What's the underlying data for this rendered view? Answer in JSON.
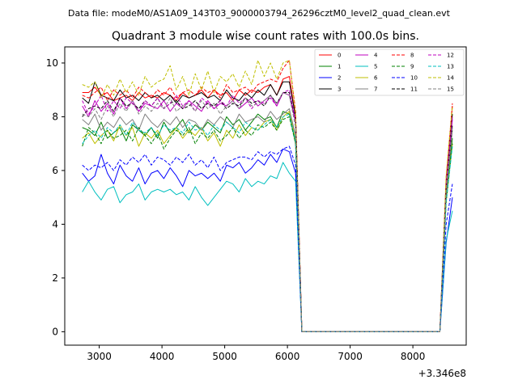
{
  "header": {
    "data_file_label": "Data file: modeM0/AS1A09_143T03_9000003794_26296cztM0_level2_quad_clean.evt"
  },
  "chart_data": {
    "type": "line",
    "title": "Quadrant 3 module wise count rates with 100.0s bins.",
    "xlabel": "",
    "ylabel": "",
    "x_offset_label": "+3.346e8",
    "x_offset": 334600000,
    "xlim": [
      2450,
      8850
    ],
    "ylim": [
      -0.5,
      10.6
    ],
    "xticks": [
      3000,
      4000,
      5000,
      6000,
      7000,
      8000
    ],
    "yticks": [
      0,
      2,
      4,
      6,
      8,
      10
    ],
    "grid": false,
    "legend_placement": "top-right",
    "legend_columns": 4,
    "x": [
      2730,
      2830,
      2930,
      3030,
      3130,
      3230,
      3330,
      3430,
      3530,
      3630,
      3730,
      3830,
      3930,
      4030,
      4130,
      4230,
      4330,
      4430,
      4530,
      4630,
      4730,
      4830,
      4930,
      5030,
      5130,
      5230,
      5330,
      5430,
      5530,
      5630,
      5730,
      5830,
      5930,
      6030,
      6130,
      6230,
      6330,
      6430,
      6530,
      6630,
      6730,
      6830,
      6930,
      7030,
      7130,
      7230,
      7330,
      7430,
      7530,
      7630,
      7730,
      7830,
      7930,
      8030,
      8130,
      8230,
      8330,
      8430,
      8530,
      8630
    ],
    "series": [
      {
        "name": "0",
        "color": "#ff0000",
        "style": "solid",
        "values": [
          8.9,
          8.9,
          9.1,
          8.8,
          8.9,
          8.6,
          8.7,
          8.8,
          8.6,
          8.9,
          8.7,
          8.8,
          8.7,
          8.9,
          8.8,
          8.6,
          8.9,
          8.7,
          8.8,
          9.0,
          8.7,
          9.0,
          8.8,
          8.9,
          8.6,
          9.0,
          8.8,
          9.0,
          8.9,
          9.1,
          9.2,
          8.8,
          9.4,
          9.5,
          8.0,
          0,
          0,
          0,
          0,
          0,
          0,
          0,
          0,
          0,
          0,
          0,
          0,
          0,
          0,
          0,
          0,
          0,
          0,
          0,
          0,
          0,
          0,
          0,
          5.6,
          8.4
        ]
      },
      {
        "name": "1",
        "color": "#008000",
        "style": "solid",
        "values": [
          7.6,
          7.5,
          7.3,
          7.8,
          7.2,
          7.4,
          7.6,
          7.1,
          7.7,
          7.5,
          7.3,
          7.6,
          7.2,
          7.8,
          7.4,
          7.6,
          7.9,
          7.4,
          7.7,
          7.5,
          7.8,
          7.6,
          7.4,
          8.0,
          7.7,
          7.9,
          7.5,
          7.8,
          8.1,
          7.9,
          8.0,
          7.6,
          8.2,
          8.1,
          7.0,
          0,
          0,
          0,
          0,
          0,
          0,
          0,
          0,
          0,
          0,
          0,
          0,
          0,
          0,
          0,
          0,
          0,
          0,
          0,
          0,
          0,
          0,
          0,
          5.0,
          7.2
        ]
      },
      {
        "name": "2",
        "color": "#0000ff",
        "style": "solid",
        "values": [
          5.9,
          5.6,
          5.8,
          6.6,
          5.9,
          5.5,
          6.2,
          5.8,
          5.6,
          6.1,
          5.5,
          5.9,
          6.0,
          5.7,
          6.1,
          5.8,
          5.4,
          6.0,
          5.8,
          5.9,
          5.7,
          5.9,
          5.6,
          6.2,
          6.1,
          6.3,
          5.9,
          6.1,
          6.4,
          6.2,
          6.6,
          6.3,
          6.8,
          6.7,
          5.9,
          0,
          0,
          0,
          0,
          0,
          0,
          0,
          0,
          0,
          0,
          0,
          0,
          0,
          0,
          0,
          0,
          0,
          0,
          0,
          0,
          0,
          0,
          0,
          3.3,
          5.0
        ]
      },
      {
        "name": "3",
        "color": "#000000",
        "style": "solid",
        "values": [
          8.7,
          8.5,
          9.3,
          8.8,
          8.7,
          8.6,
          9.0,
          8.7,
          8.8,
          8.6,
          8.9,
          8.7,
          8.8,
          8.6,
          8.8,
          8.5,
          8.8,
          8.7,
          8.8,
          8.9,
          8.7,
          8.8,
          8.6,
          9.0,
          8.7,
          8.6,
          8.9,
          8.7,
          9.0,
          8.8,
          9.2,
          8.8,
          9.3,
          9.3,
          8.0,
          0,
          0,
          0,
          0,
          0,
          0,
          0,
          0,
          0,
          0,
          0,
          0,
          0,
          0,
          0,
          0,
          0,
          0,
          0,
          0,
          0,
          0,
          0,
          5.5,
          8.1
        ]
      },
      {
        "name": "4",
        "color": "#bf00bf",
        "style": "solid",
        "values": [
          8.4,
          8.0,
          8.6,
          8.2,
          8.5,
          8.1,
          8.7,
          8.3,
          8.6,
          8.2,
          8.5,
          8.4,
          8.3,
          8.6,
          8.2,
          8.5,
          8.3,
          8.6,
          8.4,
          8.2,
          8.6,
          8.3,
          8.5,
          8.4,
          8.6,
          8.3,
          8.5,
          8.7,
          8.4,
          8.6,
          8.8,
          8.4,
          8.9,
          8.8,
          7.8,
          0,
          0,
          0,
          0,
          0,
          0,
          0,
          0,
          0,
          0,
          0,
          0,
          0,
          0,
          0,
          0,
          0,
          0,
          0,
          0,
          0,
          0,
          0,
          5.4,
          7.9
        ]
      },
      {
        "name": "5",
        "color": "#00bfbf",
        "style": "solid",
        "values": [
          5.2,
          5.6,
          5.2,
          4.9,
          5.3,
          5.4,
          4.8,
          5.1,
          5.2,
          5.5,
          4.9,
          5.2,
          5.3,
          5.2,
          5.3,
          5.1,
          5.2,
          4.9,
          5.4,
          5.0,
          4.7,
          5.0,
          5.3,
          5.6,
          5.5,
          5.2,
          5.7,
          5.4,
          5.6,
          5.5,
          5.8,
          5.7,
          6.3,
          5.9,
          5.6,
          0,
          0,
          0,
          0,
          0,
          0,
          0,
          0,
          0,
          0,
          0,
          0,
          0,
          0,
          0,
          0,
          0,
          0,
          0,
          0,
          0,
          0,
          0,
          3.4,
          4.5
        ]
      },
      {
        "name": "6",
        "color": "#bfbf00",
        "style": "solid",
        "values": [
          7.2,
          7.4,
          7.0,
          7.3,
          7.5,
          7.1,
          7.7,
          7.3,
          7.6,
          6.9,
          7.4,
          7.2,
          7.5,
          7.0,
          7.3,
          7.6,
          7.2,
          7.5,
          7.3,
          7.6,
          7.1,
          7.4,
          6.9,
          7.5,
          7.2,
          7.7,
          7.3,
          7.6,
          7.5,
          7.8,
          7.9,
          7.5,
          8.0,
          8.2,
          7.2,
          0,
          0,
          0,
          0,
          0,
          0,
          0,
          0,
          0,
          0,
          0,
          0,
          0,
          0,
          0,
          0,
          0,
          0,
          0,
          0,
          0,
          0,
          0,
          4.9,
          7.0
        ]
      },
      {
        "name": "7",
        "color": "#808080",
        "style": "solid",
        "values": [
          7.9,
          7.7,
          8.1,
          7.5,
          7.8,
          7.6,
          8.0,
          7.7,
          7.9,
          7.5,
          8.1,
          7.8,
          7.6,
          7.9,
          7.7,
          8.0,
          7.6,
          7.9,
          7.8,
          7.5,
          7.9,
          7.7,
          8.0,
          7.8,
          7.6,
          8.1,
          7.8,
          7.9,
          8.0,
          7.8,
          8.2,
          7.9,
          8.1,
          8.3,
          7.3,
          0,
          0,
          0,
          0,
          0,
          0,
          0,
          0,
          0,
          0,
          0,
          0,
          0,
          0,
          0,
          0,
          0,
          0,
          0,
          0,
          0,
          0,
          0,
          5.1,
          7.5
        ]
      },
      {
        "name": "8",
        "color": "#ff0000",
        "style": "dashed",
        "values": [
          8.8,
          8.7,
          8.9,
          9.1,
          8.6,
          9.0,
          8.8,
          9.0,
          8.7,
          9.1,
          8.9,
          8.7,
          9.0,
          8.8,
          9.1,
          8.7,
          8.9,
          9.0,
          8.8,
          9.1,
          8.9,
          9.0,
          8.7,
          9.2,
          8.9,
          9.0,
          9.1,
          8.9,
          9.2,
          9.3,
          9.4,
          9.3,
          9.8,
          10.1,
          8.2,
          0,
          0,
          0,
          0,
          0,
          0,
          0,
          0,
          0,
          0,
          0,
          0,
          0,
          0,
          0,
          0,
          0,
          0,
          0,
          0,
          0,
          0,
          0,
          5.7,
          8.5
        ]
      },
      {
        "name": "9",
        "color": "#008000",
        "style": "dashed",
        "values": [
          6.9,
          7.6,
          7.4,
          7.0,
          7.5,
          7.2,
          7.3,
          7.5,
          7.1,
          7.6,
          7.3,
          7.0,
          7.4,
          6.8,
          7.2,
          7.5,
          7.3,
          7.6,
          7.0,
          7.4,
          7.2,
          7.5,
          7.1,
          7.3,
          7.6,
          7.2,
          7.5,
          7.3,
          7.7,
          7.6,
          7.8,
          7.5,
          7.9,
          8.0,
          7.0,
          0,
          0,
          0,
          0,
          0,
          0,
          0,
          0,
          0,
          0,
          0,
          0,
          0,
          0,
          0,
          0,
          0,
          0,
          0,
          0,
          0,
          0,
          0,
          4.8,
          7.0
        ]
      },
      {
        "name": "10",
        "color": "#0000ff",
        "style": "dashed",
        "values": [
          6.2,
          6.0,
          6.2,
          6.1,
          6.3,
          6.0,
          6.4,
          6.2,
          6.5,
          6.3,
          6.6,
          6.2,
          6.5,
          6.4,
          6.2,
          6.5,
          6.3,
          6.6,
          6.2,
          6.4,
          6.1,
          6.5,
          6.0,
          6.3,
          6.4,
          6.5,
          6.5,
          6.4,
          6.7,
          6.5,
          6.7,
          6.6,
          6.8,
          6.9,
          6.2,
          0,
          0,
          0,
          0,
          0,
          0,
          0,
          0,
          0,
          0,
          0,
          0,
          0,
          0,
          0,
          0,
          0,
          0,
          0,
          0,
          0,
          0,
          0,
          4.0,
          5.5
        ]
      },
      {
        "name": "11",
        "color": "#000000",
        "style": "dashed",
        "values": [
          8.0,
          8.3,
          8.4,
          8.3,
          8.6,
          8.2,
          8.7,
          8.4,
          8.5,
          8.3,
          8.6,
          8.4,
          8.7,
          8.3,
          8.5,
          8.6,
          8.3,
          8.4,
          8.6,
          8.3,
          8.5,
          8.4,
          8.6,
          8.3,
          8.5,
          8.4,
          8.7,
          8.5,
          8.6,
          8.4,
          8.8,
          8.5,
          8.9,
          8.9,
          7.9,
          0,
          0,
          0,
          0,
          0,
          0,
          0,
          0,
          0,
          0,
          0,
          0,
          0,
          0,
          0,
          0,
          0,
          0,
          0,
          0,
          0,
          0,
          0,
          5.3,
          7.7
        ]
      },
      {
        "name": "12",
        "color": "#bf00bf",
        "style": "dashed",
        "values": [
          8.6,
          8.1,
          8.4,
          8.8,
          8.2,
          8.6,
          8.3,
          8.7,
          8.5,
          8.2,
          8.6,
          8.4,
          8.7,
          8.3,
          8.5,
          8.8,
          8.4,
          8.6,
          8.2,
          8.7,
          8.5,
          8.3,
          8.6,
          8.4,
          8.8,
          8.5,
          8.7,
          8.3,
          8.6,
          8.5,
          8.7,
          8.4,
          8.9,
          9.0,
          7.9,
          0,
          0,
          0,
          0,
          0,
          0,
          0,
          0,
          0,
          0,
          0,
          0,
          0,
          0,
          0,
          0,
          0,
          0,
          0,
          0,
          0,
          0,
          0,
          5.5,
          8.0
        ]
      },
      {
        "name": "13",
        "color": "#00bfbf",
        "style": "dashed",
        "values": [
          7.0,
          7.3,
          7.5,
          7.2,
          7.6,
          7.4,
          7.7,
          7.3,
          7.8,
          7.5,
          7.4,
          7.6,
          7.3,
          7.7,
          7.5,
          7.6,
          7.4,
          7.8,
          7.5,
          7.6,
          7.3,
          7.7,
          7.5,
          7.8,
          7.6,
          7.4,
          7.8,
          7.6,
          7.5,
          7.7,
          7.9,
          7.6,
          8.0,
          8.1,
          7.1,
          0,
          0,
          0,
          0,
          0,
          0,
          0,
          0,
          0,
          0,
          0,
          0,
          0,
          0,
          0,
          0,
          0,
          0,
          0,
          0,
          0,
          0,
          0,
          4.8,
          6.9
        ]
      },
      {
        "name": "14",
        "color": "#bfbf00",
        "style": "dashed",
        "values": [
          9.2,
          9.1,
          9.3,
          8.7,
          9.2,
          8.8,
          9.4,
          8.9,
          9.3,
          8.8,
          9.5,
          9.1,
          9.3,
          9.4,
          9.9,
          9.0,
          9.5,
          8.8,
          9.6,
          9.0,
          9.7,
          8.9,
          9.5,
          9.3,
          9.6,
          9.1,
          9.7,
          9.2,
          10.1,
          9.5,
          10.0,
          9.4,
          10.0,
          10.1,
          8.1,
          0,
          0,
          0,
          0,
          0,
          0,
          0,
          0,
          0,
          0,
          0,
          0,
          0,
          0,
          0,
          0,
          0,
          0,
          0,
          0,
          0,
          0,
          0,
          5.8,
          8.4
        ]
      },
      {
        "name": "15",
        "color": "#808080",
        "style": "dashed",
        "values": [
          8.1,
          8.0,
          8.3,
          7.9,
          8.4,
          8.0,
          8.5,
          8.2,
          8.6,
          8.1,
          8.4,
          8.2,
          8.5,
          8.3,
          8.7,
          8.2,
          8.4,
          8.5,
          8.2,
          8.6,
          8.3,
          8.5,
          8.1,
          8.4,
          8.6,
          8.3,
          8.7,
          8.4,
          8.5,
          8.6,
          8.8,
          8.5,
          8.9,
          8.8,
          7.6,
          0,
          0,
          0,
          0,
          0,
          0,
          0,
          0,
          0,
          0,
          0,
          0,
          0,
          0,
          0,
          0,
          0,
          0,
          0,
          0,
          0,
          0,
          0,
          5.2,
          7.6
        ]
      }
    ]
  }
}
